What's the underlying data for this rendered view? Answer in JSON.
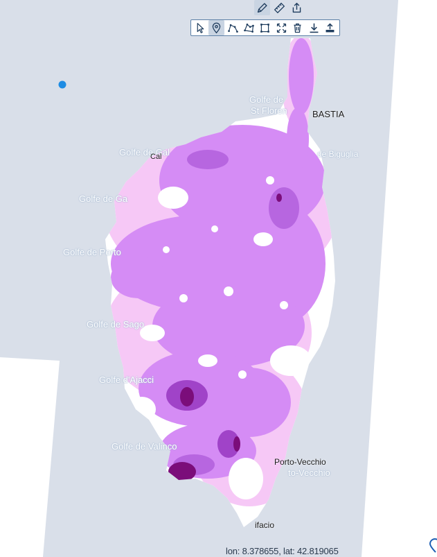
{
  "map": {
    "sea_color": "#d9dfe9",
    "land_color": "#ffffff",
    "light_pink": "#f6c8f6",
    "lilac": "#d58cf5",
    "purple": "#a043c8",
    "dark_purple": "#7b0d7a"
  },
  "toolbar_top": {
    "tools": [
      {
        "icon": "pencil-icon",
        "active": true
      },
      {
        "icon": "ruler-icon",
        "active": false
      },
      {
        "icon": "share-export-icon",
        "active": false
      }
    ]
  },
  "toolbar_main": {
    "tools": [
      {
        "icon": "pointer-icon",
        "active": false
      },
      {
        "icon": "map-pin-icon",
        "active": true
      },
      {
        "icon": "line-draw-icon",
        "active": false
      },
      {
        "icon": "polygon-draw-icon",
        "active": false
      },
      {
        "icon": "rectangle-draw-icon",
        "active": false
      },
      {
        "icon": "expand-icon",
        "active": false
      },
      {
        "icon": "trash-icon",
        "active": false
      },
      {
        "icon": "download-icon",
        "active": false
      },
      {
        "icon": "upload-icon",
        "active": false
      }
    ]
  },
  "labels": {
    "golfe_st_florent_1": "Golfe de",
    "golfe_st_florent_2": "St Floren",
    "bastia": "BASTIA",
    "biguglia": "de Biguglia",
    "golfe_galeria": "Golfe de Gal",
    "calvi": "Cal",
    "golfe_girolata": "Golfe de Ga",
    "golfe_porto": "Golfe de Porto",
    "golfe_sagone": "Golfe de Sago",
    "golfe_ajaccio": "Golfe d'Ajacci",
    "golfe_valinco": "Golfe de Valinco",
    "porto_vecchio_town": "Porto-Vecchio",
    "porto_vecchio_gulf": "to-Vecchio",
    "bonifacio": "ifacio"
  },
  "status": {
    "coords": "lon: 8.378655, lat: 42.819065"
  }
}
